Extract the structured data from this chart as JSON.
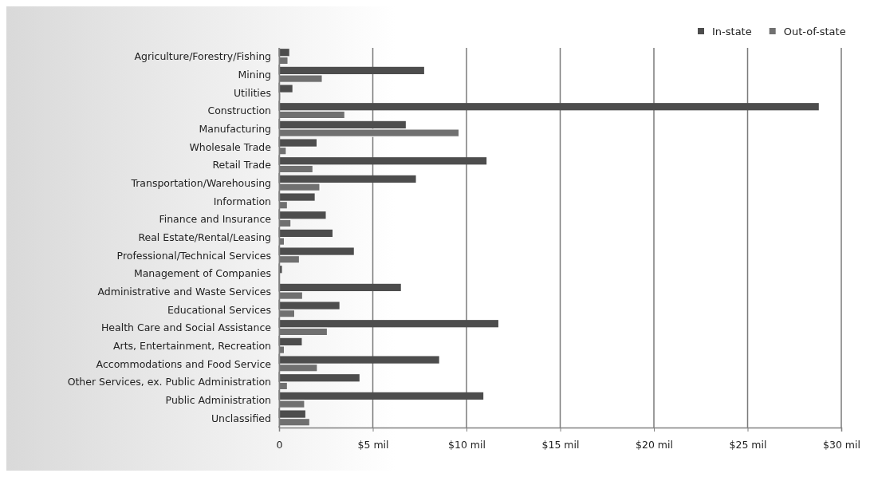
{
  "chart_data": {
    "type": "bar",
    "orientation": "horizontal",
    "categories": [
      "Agriculture/Forestry/Fishing",
      "Mining",
      "Utilities",
      "Construction",
      "Manufacturing",
      "Wholesale Trade",
      "Retail Trade",
      "Transportation/Warehousing",
      "Information",
      "Finance and Insurance",
      "Real Estate/Rental/Leasing",
      "Professional/Technical Services",
      "Management of Companies",
      "Administrative and Waste Services",
      "Educational Services",
      "Health Care and Social Assistance",
      "Arts, Entertainment, Recreation",
      "Accommodations and Food Service",
      "Other Services, ex. Public Administration",
      "Public Administration",
      "Unclassified"
    ],
    "series": [
      {
        "name": "In-state",
        "color": "#4d4d4d",
        "values": [
          0.54,
          7.74,
          0.71,
          28.8,
          6.76,
          2.0,
          11.07,
          7.3,
          1.9,
          2.49,
          2.85,
          3.99,
          0.15,
          6.5,
          3.22,
          11.7,
          1.21,
          8.54,
          4.29,
          10.9,
          1.4
        ]
      },
      {
        "name": "Out-of-state",
        "color": "#707070",
        "values": [
          0.47,
          2.3,
          0.08,
          3.5,
          9.6,
          0.38,
          1.8,
          2.17,
          0.44,
          0.63,
          0.28,
          1.08,
          null,
          1.25,
          0.83,
          2.57,
          0.28,
          2.04,
          0.44,
          1.36,
          1.63
        ]
      }
    ],
    "xlim": [
      0,
      30
    ],
    "xticks": [
      0,
      {
        "value": 5,
        "label": "$5 mil"
      },
      {
        "value": 10,
        "label": "$10 mil"
      },
      {
        "value": 15,
        "label": "$15 mil"
      },
      {
        "value": 20,
        "label": "$20 mil"
      },
      {
        "value": 25,
        "label": "$25 mil"
      },
      {
        "value": 30,
        "label": "$30 mil"
      }
    ],
    "grid": "x",
    "legend": "top right"
  }
}
